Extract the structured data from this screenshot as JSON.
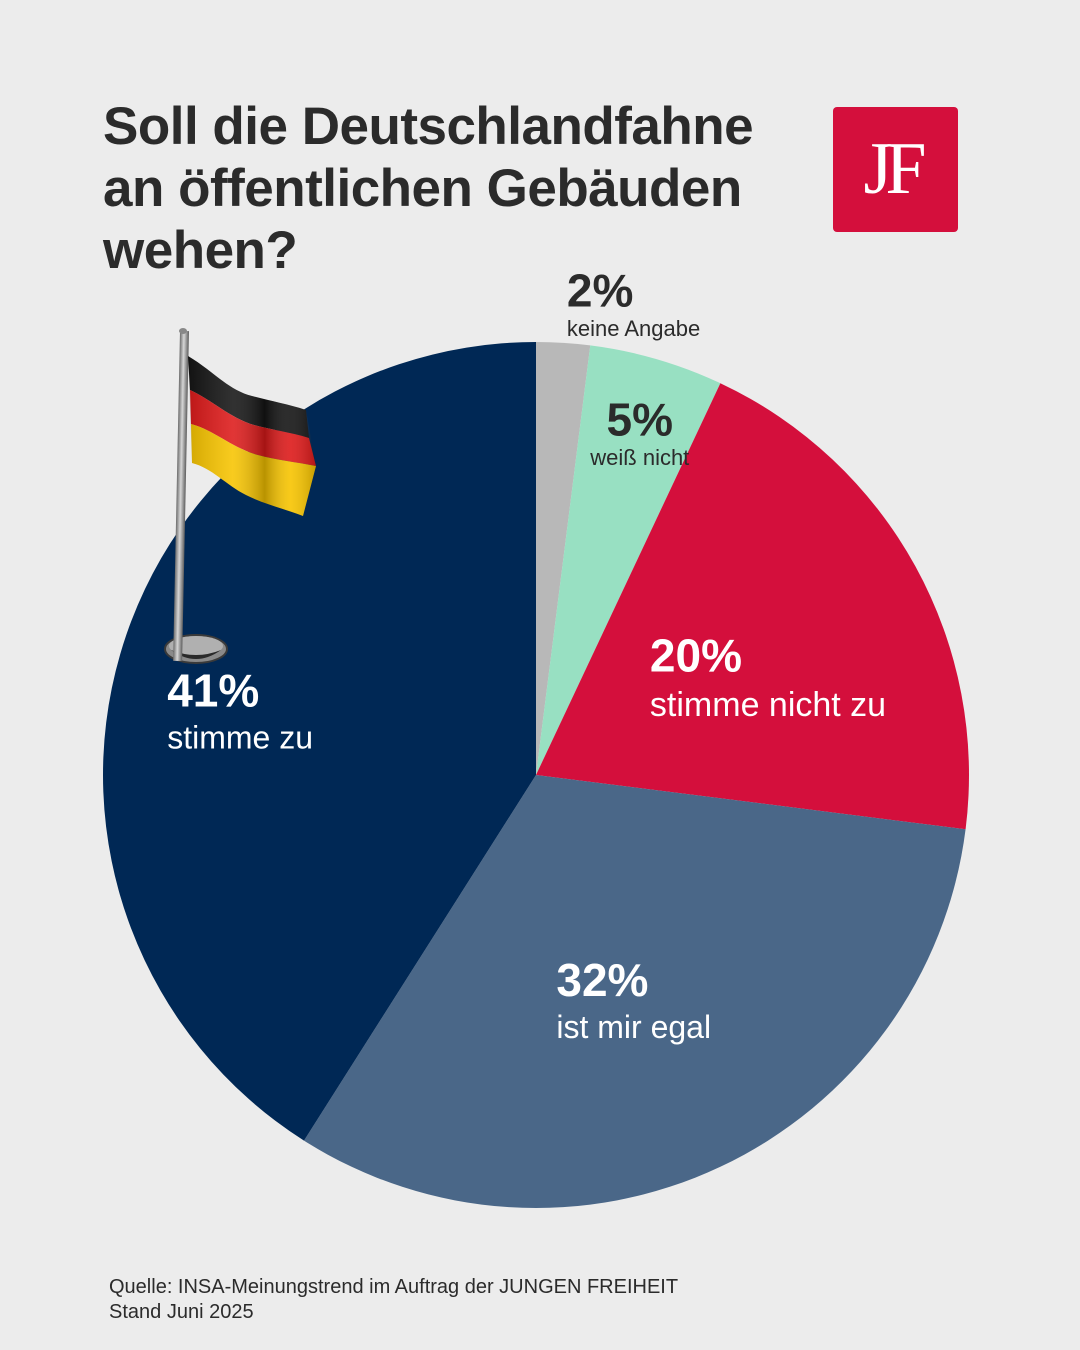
{
  "title_lines": [
    "Soll die Deutschlandfahne",
    "an öffentlichen Gebäuden",
    "wehen?"
  ],
  "logo": {
    "text": "JF",
    "color": "#d40f3c"
  },
  "flag_icon": "german-flag-on-pole-icon",
  "chart_data": {
    "type": "pie",
    "title": "Soll die Deutschlandfahne an öffentlichen Gebäuden wehen?",
    "start": "12 o'clock",
    "direction": "clockwise",
    "slices": [
      {
        "label": "keine Angabe",
        "value": 2,
        "pct": "2%",
        "color": "#b8b8b8",
        "text_color": "#2b2b2b"
      },
      {
        "label": "weiß nicht",
        "value": 5,
        "pct": "5%",
        "color": "#98e0c2",
        "text_color": "#2b2b2b"
      },
      {
        "label": "stimme nicht zu",
        "value": 20,
        "pct": "20%",
        "color": "#d40f3c",
        "text_color": "#ffffff"
      },
      {
        "label": "ist mir egal",
        "value": 32,
        "pct": "32%",
        "color": "#4a6788",
        "text_color": "#ffffff"
      },
      {
        "label": "stimme zu",
        "value": 41,
        "pct": "41%",
        "color": "#002855",
        "text_color": "#ffffff"
      }
    ]
  },
  "source": {
    "line1": "Quelle: INSA-Meinungstrend im Auftrag der JUNGEN FREIHEIT",
    "line2": "Stand Juni 2025"
  }
}
